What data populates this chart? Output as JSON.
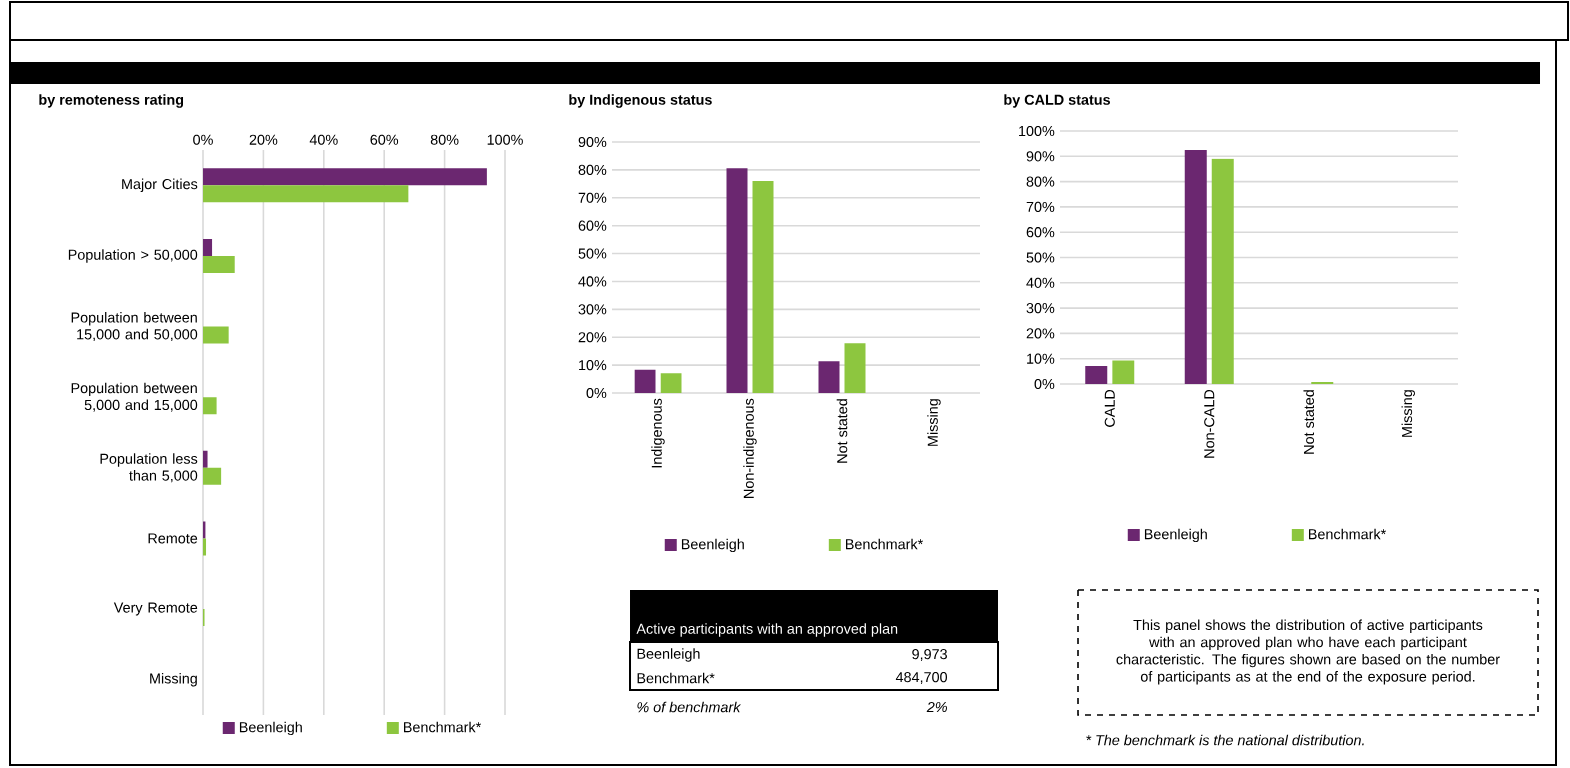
{
  "chart_data": [
    {
      "type": "bar",
      "orientation": "horizontal",
      "title": "by remoteness rating",
      "categories": [
        "Major Cities",
        "Population > 50,000",
        "Population between 15,000 and 50,000",
        "Population between 5,000 and 15,000",
        "Population less than 5,000",
        "Remote",
        "Very Remote",
        "Missing"
      ],
      "series": [
        {
          "name": "Beenleigh",
          "color": "#6b2770",
          "values": [
            94,
            3,
            0,
            0,
            1.5,
            0.8,
            0,
            0
          ]
        },
        {
          "name": "Benchmark*",
          "color": "#8dc63f",
          "values": [
            68,
            10.5,
            8.5,
            4.5,
            6,
            1,
            0.5,
            0
          ]
        }
      ],
      "xlim": [
        0,
        100
      ],
      "xticks": [
        {
          "value": 0,
          "label": "0%"
        },
        {
          "value": 20,
          "label": "20%"
        },
        {
          "value": 40,
          "label": "40%"
        },
        {
          "value": 60,
          "label": "60%"
        },
        {
          "value": 80,
          "label": "80%"
        },
        {
          "value": 100,
          "label": "100%"
        }
      ],
      "grid": "x",
      "legend": "bottom"
    },
    {
      "type": "bar",
      "title": "by Indigenous status",
      "categories": [
        "Indigenous",
        "Non-indigenous",
        "Not stated",
        "Missing"
      ],
      "series": [
        {
          "name": "Beenleigh",
          "color": "#6b2770",
          "values": [
            8.3,
            80.6,
            11.4,
            0
          ]
        },
        {
          "name": "Benchmark*",
          "color": "#8dc63f",
          "values": [
            7.1,
            76,
            17.8,
            0
          ]
        }
      ],
      "ylim": [
        0,
        90
      ],
      "yticks": [
        {
          "value": 0,
          "label": "0%"
        },
        {
          "value": 10,
          "label": "10%"
        },
        {
          "value": 20,
          "label": "20%"
        },
        {
          "value": 30,
          "label": "30%"
        },
        {
          "value": 40,
          "label": "40%"
        },
        {
          "value": 50,
          "label": "50%"
        },
        {
          "value": 60,
          "label": "60%"
        },
        {
          "value": 70,
          "label": "70%"
        },
        {
          "value": 80,
          "label": "80%"
        },
        {
          "value": 90,
          "label": "90%"
        }
      ],
      "grid": "y",
      "legend": "bottom"
    },
    {
      "type": "bar",
      "title": "by CALD status",
      "categories": [
        "CALD",
        "Non-CALD",
        "Not stated",
        "Missing"
      ],
      "series": [
        {
          "name": "Beenleigh",
          "color": "#6b2770",
          "values": [
            7.1,
            92.5,
            0,
            0
          ]
        },
        {
          "name": "Benchmark*",
          "color": "#8dc63f",
          "values": [
            9.3,
            89,
            0.8,
            0
          ]
        }
      ],
      "ylim": [
        0,
        100
      ],
      "yticks": [
        {
          "value": 0,
          "label": "0%"
        },
        {
          "value": 10,
          "label": "10%"
        },
        {
          "value": 20,
          "label": "20%"
        },
        {
          "value": 30,
          "label": "30%"
        },
        {
          "value": 40,
          "label": "40%"
        },
        {
          "value": 50,
          "label": "50%"
        },
        {
          "value": 60,
          "label": "60%"
        },
        {
          "value": 70,
          "label": "70%"
        },
        {
          "value": 80,
          "label": "80%"
        },
        {
          "value": 90,
          "label": "90%"
        },
        {
          "value": 100,
          "label": "100%"
        }
      ],
      "grid": "y",
      "legend": "bottom"
    },
    {
      "type": "other",
      "title": "Active participants with an approved plan",
      "annotations": [
        "Beenleigh",
        "9,973",
        "Benchmark*",
        "484,700",
        "% of benchmark",
        "2%",
        "This panel shows the distribution of active participants with an approved plan who have each participant characteristic. The figures shown are based on the number of participants as at the end of the exposure period.",
        "* The benchmark is the national distribution."
      ]
    }
  ]
}
